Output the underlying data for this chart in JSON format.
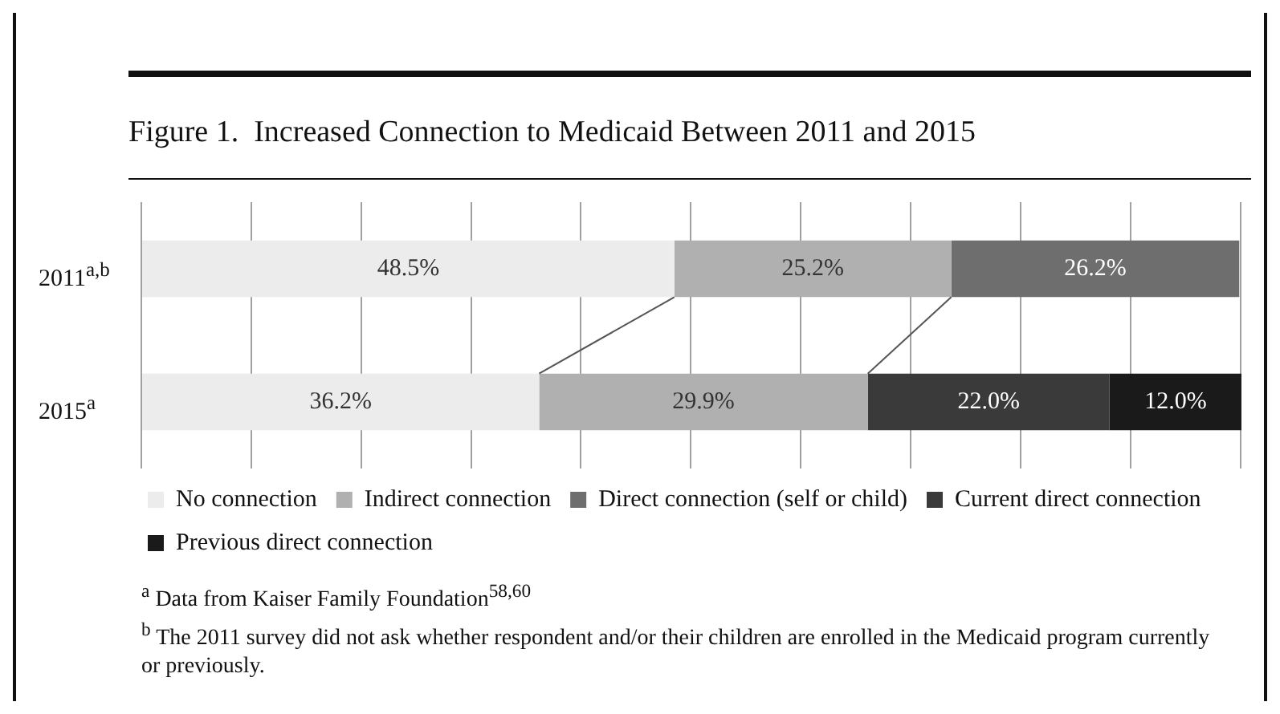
{
  "chart_data": {
    "type": "bar",
    "orientation": "horizontal",
    "stacked": true,
    "title": "Figure 1.  Increased Connection to Medicaid Between 2011 and 2015",
    "categories": [
      "2011$^{a,b}$",
      "2015$^{a}$"
    ],
    "series": [
      {
        "name": "No connection",
        "color": "#ececec",
        "values": [
          48.5,
          36.2
        ],
        "value_labels": [
          "48.5%",
          "36.2%"
        ]
      },
      {
        "name": "Indirect connection",
        "color": "#b0b0b0",
        "values": [
          25.2,
          29.9
        ],
        "value_labels": [
          "25.2%",
          "29.9%"
        ]
      },
      {
        "name": "Direct connection (self or child)",
        "color": "#6e6e6e",
        "values": [
          26.2,
          null
        ],
        "value_labels": [
          "26.2%",
          null
        ]
      },
      {
        "name": "Current direct connection",
        "color": "#3a3a3a",
        "values": [
          null,
          22.0
        ],
        "value_labels": [
          null,
          "22.0%"
        ]
      },
      {
        "name": "Previous direct connection",
        "color": "#1a1a1a",
        "values": [
          null,
          12.0
        ],
        "value_labels": [
          null,
          "12.0%"
        ]
      }
    ],
    "xlim": [
      0,
      100.1
    ],
    "xticks": [
      {
        "value": 0,
        "label": null
      },
      {
        "value": 10,
        "label": null
      },
      {
        "value": 20,
        "label": null
      },
      {
        "value": 30,
        "label": null
      },
      {
        "value": 40,
        "label": null
      },
      {
        "value": 50,
        "label": null
      },
      {
        "value": 60,
        "label": null
      },
      {
        "value": 70,
        "label": null
      },
      {
        "value": 80,
        "label": null
      },
      {
        "value": 90,
        "label": null
      },
      {
        "value": 100,
        "label": null
      }
    ],
    "tick_labels": "y",
    "grid": "x",
    "legend": "bottom",
    "annotations": [
      "$^{a}$ Data from Kaiser Family Foundation$^{58,60}$",
      "$^{b}$ The 2011 survey did not ask whether respondent and/or their children are enrolled in the Medicaid program currently or previously."
    ]
  }
}
